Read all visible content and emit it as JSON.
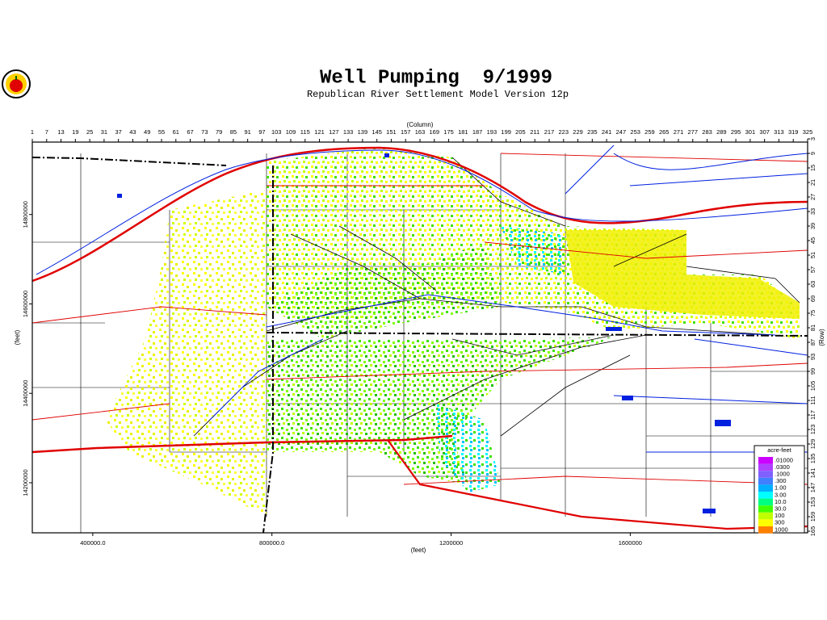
{
  "header": {
    "title": "Well Pumping  9/1999",
    "subtitle": "Republican River Settlement Model Version 12p"
  },
  "map": {
    "column_axis": {
      "label": "(Column)",
      "xlim": [
        1,
        325
      ],
      "ticks": [
        1,
        7,
        13,
        19,
        25,
        31,
        37,
        43,
        49,
        55,
        61,
        67,
        73,
        79,
        85,
        91,
        97,
        103,
        109,
        115,
        121,
        127,
        133,
        139,
        145,
        151,
        157,
        163,
        169,
        175,
        181,
        187,
        193,
        199,
        205,
        211,
        217,
        223,
        229,
        235,
        241,
        247,
        253,
        259,
        265,
        271,
        277,
        283,
        289,
        295,
        301,
        307,
        313,
        319,
        325
      ]
    },
    "row_axis": {
      "label": "(Row)",
      "ylim": [
        3,
        165
      ],
      "ticks": [
        3,
        9,
        15,
        21,
        27,
        33,
        39,
        45,
        51,
        57,
        63,
        69,
        75,
        81,
        87,
        93,
        99,
        105,
        111,
        117,
        123,
        129,
        135,
        141,
        147,
        153,
        159,
        165
      ]
    },
    "x_axis": {
      "label": "(feet)",
      "xlim": [
        265000,
        1996000
      ],
      "ticks": [
        {
          "value": 400000,
          "label": "400000.0"
        },
        {
          "value": 800000,
          "label": "800000.0"
        },
        1200000,
        1600000
      ]
    },
    "y_axis": {
      "label": "(feet)",
      "ylim": [
        14088000,
        14962000
      ],
      "ticks": [
        14200000,
        14400000,
        14600000,
        14800000
      ]
    },
    "legend": {
      "title": "acre-feet",
      "entries": [
        {
          "label": ".01000",
          "color": "#cc00ff"
        },
        {
          "label": ".0300",
          "color": "#b040ff"
        },
        {
          "label": ".1000",
          "color": "#8060ff"
        },
        {
          "label": ".300",
          "color": "#4080ff"
        },
        {
          "label": "1.00",
          "color": "#00b0ff"
        },
        {
          "label": "3.00",
          "color": "#00ffff"
        },
        {
          "label": "10.0",
          "color": "#00ff80"
        },
        {
          "label": "30.0",
          "color": "#40ff00"
        },
        {
          "label": "100",
          "color": "#c0ff00"
        },
        {
          "label": "300",
          "color": "#ffff00"
        },
        {
          "label": "1000",
          "color": "#ff8000"
        }
      ]
    }
  }
}
